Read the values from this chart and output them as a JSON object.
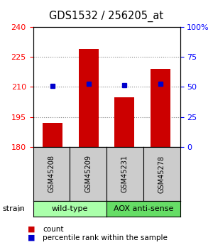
{
  "title": "GDS1532 / 256205_at",
  "samples": [
    "GSM45208",
    "GSM45209",
    "GSM45231",
    "GSM45278"
  ],
  "red_values": [
    192,
    229,
    205,
    219
  ],
  "blue_values": [
    210.5,
    211.5,
    210.8,
    211.5
  ],
  "ylim_left": [
    180,
    240
  ],
  "ylim_right": [
    0,
    100
  ],
  "yticks_left": [
    180,
    195,
    210,
    225,
    240
  ],
  "yticks_right": [
    0,
    25,
    50,
    75,
    100
  ],
  "ytick_labels_right": [
    "0",
    "25",
    "50",
    "75",
    "100%"
  ],
  "groups": [
    {
      "label": "wild-type",
      "indices": [
        0,
        1
      ],
      "color": "#aaffaa"
    },
    {
      "label": "AOX anti-sense",
      "indices": [
        2,
        3
      ],
      "color": "#66dd66"
    }
  ],
  "bar_width": 0.55,
  "red_color": "#cc0000",
  "blue_color": "#0000cc",
  "grid_dotted_color": "#888888",
  "sample_box_color": "#cccccc",
  "bg_color": "#ffffff",
  "plot_bg": "#ffffff",
  "strain_label": "strain",
  "legend_red": "count",
  "legend_blue": "percentile rank within the sample",
  "title_fontsize": 10.5,
  "tick_fontsize": 8,
  "sample_fontsize": 7,
  "group_fontsize": 8,
  "legend_fontsize": 7.5
}
